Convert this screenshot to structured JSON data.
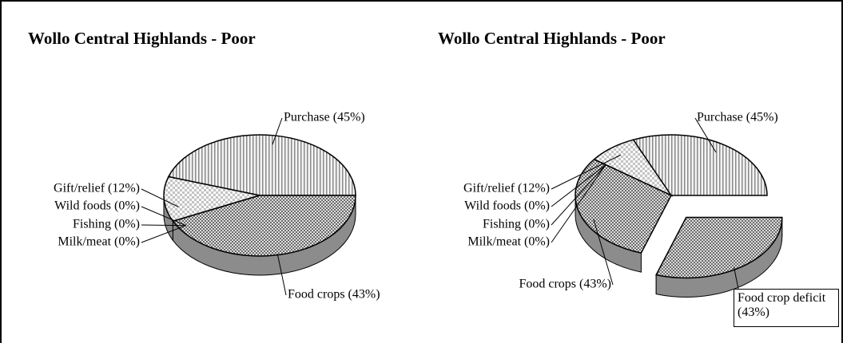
{
  "chart_data": [
    {
      "type": "pie",
      "title": "Wollo Central Highlands - Poor",
      "values": [
        45,
        12,
        0,
        0,
        0,
        43
      ],
      "value_labels": [
        "Purchase (45%)",
        "Gift/relief (12%)",
        "Wild foods (0%)",
        "Fishing (0%)",
        "Milk/meat (0%)",
        "Food crops (43%)"
      ],
      "explode": [
        false,
        false,
        false,
        false,
        false,
        false
      ]
    },
    {
      "type": "pie",
      "title": "Wollo Central Highlands - Poor",
      "values": [
        45,
        12,
        0,
        0,
        0,
        43,
        43
      ],
      "value_labels": [
        "Purchase (45%)",
        "Gift/relief (12%)",
        "Wild foods (0%)",
        "Fishing (0%)",
        "Milk/meat (0%)",
        "Food crops (43%)",
        "Food crop deficit (43%)"
      ],
      "explode": [
        false,
        false,
        false,
        false,
        false,
        false,
        true
      ]
    }
  ]
}
